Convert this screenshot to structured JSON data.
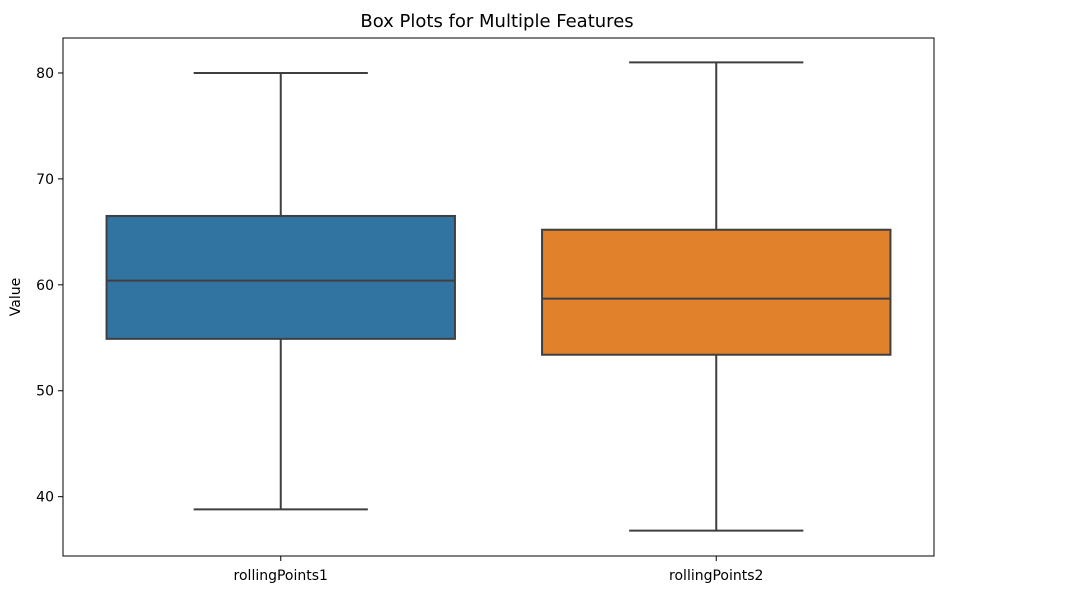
{
  "chart_data": {
    "type": "box",
    "title": "Box Plots for Multiple Features",
    "xlabel": "",
    "ylabel": "Value",
    "ylim": [
      34.4,
      83.3
    ],
    "yticks": [
      40,
      50,
      60,
      70,
      80
    ],
    "categories": [
      "rollingPoints1",
      "rollingPoints2"
    ],
    "boxes": [
      {
        "category": "rollingPoints1",
        "whisker_low": 38.8,
        "q1": 54.9,
        "median": 60.4,
        "q3": 66.5,
        "whisker_high": 80.0,
        "color": "#3274a1"
      },
      {
        "category": "rollingPoints2",
        "whisker_low": 36.8,
        "q1": 53.4,
        "median": 58.7,
        "q3": 65.2,
        "whisker_high": 81.0,
        "color": "#e1812c"
      }
    ],
    "grid": false,
    "legend": "none",
    "line_color": "#3f3f3f"
  }
}
